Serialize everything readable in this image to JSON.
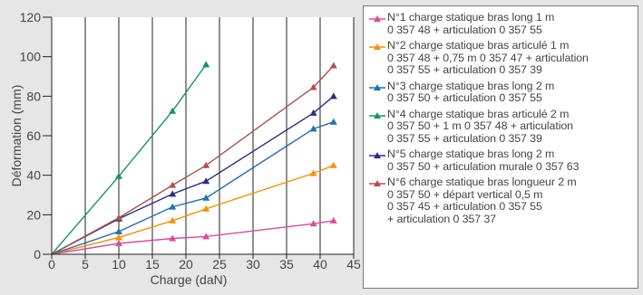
{
  "chart_data": {
    "type": "line",
    "xlabel": "Charge (daN)",
    "ylabel": "Déformation (mm)",
    "xlim": [
      0,
      45
    ],
    "ylim": [
      0,
      120
    ],
    "xticks": [
      "0",
      "5",
      "10",
      "15",
      "20",
      "25",
      "30",
      "35",
      "40",
      "45"
    ],
    "yticks": [
      "0",
      "20",
      "40",
      "60",
      "80",
      "100",
      "120"
    ],
    "grid": "vertical",
    "legend_position": "right",
    "series": [
      {
        "name": "N°1 charge statique bras long 1 m\n0 357 48 + articulation 0 357 55",
        "color": "#e04a9a",
        "x": [
          0,
          10,
          18,
          23,
          39,
          42
        ],
        "y": [
          0,
          5.5,
          8,
          9,
          15.5,
          17
        ]
      },
      {
        "name": "N°2 charge statique bras articulé 1 m\n0 357 48 + 0,75 m 0 357 47 + articulation\n0 357 55 + articulation 0 357 39",
        "color": "#f39200",
        "x": [
          0,
          10,
          18,
          23,
          39,
          42
        ],
        "y": [
          0,
          8.5,
          17,
          23,
          41,
          45
        ]
      },
      {
        "name": "N°3 charge statique bras long 2 m\n0 357 50 + articulation 0 357 55",
        "color": "#1f6fb5",
        "x": [
          0,
          10,
          18,
          23,
          39,
          42
        ],
        "y": [
          0,
          11.5,
          24,
          28.5,
          63.5,
          67
        ]
      },
      {
        "name": "N°4 charge statique bras articulé 2 m\n0 357 50 + 1 m 0 357 48 + articulation\n0 357 55 + articulation 0 357 39",
        "color": "#18906e",
        "x": [
          0,
          10,
          18,
          23
        ],
        "y": [
          0,
          39.5,
          72.5,
          96
        ]
      },
      {
        "name": "N°5 charge statique bras long 2 m\n0 357 50 + articulation murale 0 357 63",
        "color": "#2a2e83",
        "x": [
          0,
          10,
          18,
          23,
          39,
          42
        ],
        "y": [
          0,
          18,
          30.5,
          37,
          71.5,
          80
        ]
      },
      {
        "name": "N°6 charge statique bras longueur 2 m\n0 357 50 + départ vertical 0,5 m\n0 357 45 + articulation 0 357 55\n+ articulation 0 357 37",
        "color": "#b0504a",
        "x": [
          0,
          10,
          18,
          23,
          39,
          42
        ],
        "y": [
          0,
          18.5,
          35,
          45,
          84.5,
          95.5
        ]
      }
    ]
  }
}
